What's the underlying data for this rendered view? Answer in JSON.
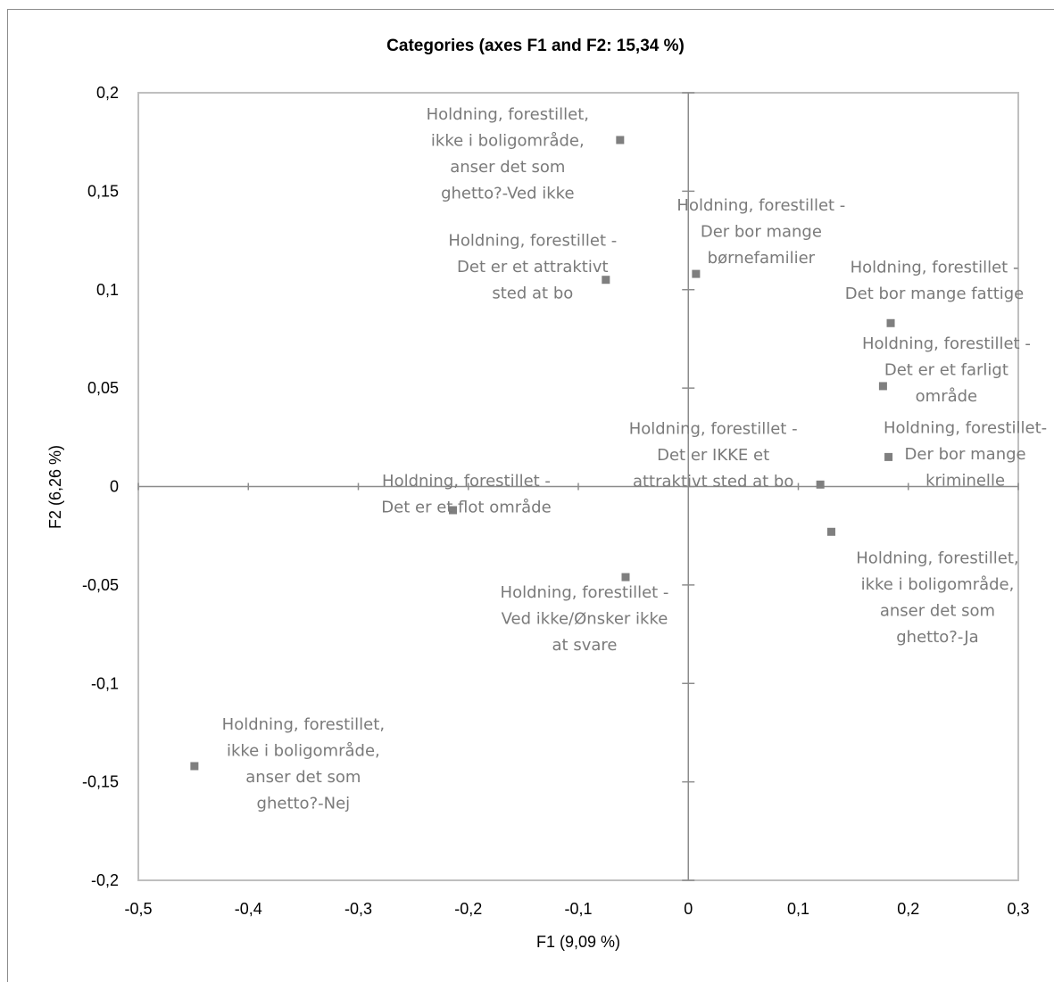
{
  "chart_data": {
    "type": "scatter",
    "title": "Categories (axes F1 and F2: 15,34 %)",
    "xlabel": "F1 (9,09 %)",
    "ylabel": "F2 (6,26 %)",
    "xlim": [
      -0.5,
      0.3
    ],
    "ylim": [
      -0.2,
      0.2
    ],
    "x_ticks": [
      -0.5,
      -0.4,
      -0.3,
      -0.2,
      -0.1,
      0,
      0.1,
      0.2,
      0.3
    ],
    "x_tick_labels": [
      "-0,5",
      "-0,4",
      "-0,3",
      "-0,2",
      "-0,1",
      "0",
      "0,1",
      "0,2",
      "0,3"
    ],
    "y_ticks": [
      0.2,
      0.15,
      0.1,
      0.05,
      0,
      -0.05,
      -0.1,
      -0.15,
      -0.2
    ],
    "y_tick_labels": [
      "0,2",
      "0,15",
      "0,1",
      "0,05",
      "0",
      "-0,05",
      "-0,1",
      "-0,15",
      "-0,2"
    ],
    "grid": false,
    "marker_color": "#7f7f7f",
    "label_color": "#7a7a7a",
    "points": [
      {
        "x": -0.062,
        "y": 0.176,
        "lines": [
          "Holdning, forestillet,",
          "ikke i boligområde,",
          "anser det som",
          "ghetto?-Ved ikke"
        ]
      },
      {
        "x": -0.075,
        "y": 0.105,
        "lines": [
          "Holdning, forestillet -",
          "Det er et attraktivt",
          "sted at bo"
        ]
      },
      {
        "x": 0.007,
        "y": 0.108,
        "lines": [
          "Holdning, forestillet -",
          "Der bor mange",
          "børnefamilier"
        ]
      },
      {
        "x": 0.184,
        "y": 0.083,
        "lines": [
          "Holdning, forestillet -",
          "Det bor mange fattige"
        ]
      },
      {
        "x": 0.177,
        "y": 0.051,
        "lines": [
          "Holdning, forestillet -",
          "Det er et farligt",
          "område"
        ]
      },
      {
        "x": 0.182,
        "y": 0.015,
        "lines": [
          "Holdning, forestillet-",
          "Der bor mange",
          "kriminelle"
        ]
      },
      {
        "x": 0.12,
        "y": 0.001,
        "lines": [
          "Holdning, forestillet -",
          "Det er IKKE et",
          "attraktivt sted at bo"
        ]
      },
      {
        "x": -0.214,
        "y": -0.012,
        "lines": [
          "Holdning, forestillet -",
          "Det er et flot område"
        ]
      },
      {
        "x": 0.13,
        "y": -0.023,
        "lines": [
          "Holdning, forestillet,",
          "ikke i boligområde,",
          "anser det som",
          "ghetto?-Ja"
        ]
      },
      {
        "x": -0.057,
        "y": -0.046,
        "lines": [
          "Holdning, forestillet -",
          "Ved ikke/Ønsker ikke",
          "at svare"
        ]
      },
      {
        "x": -0.449,
        "y": -0.142,
        "lines": [
          "Holdning, forestillet,",
          "ikke i boligområde,",
          "anser det som",
          "ghetto?-Nej"
        ]
      }
    ]
  }
}
